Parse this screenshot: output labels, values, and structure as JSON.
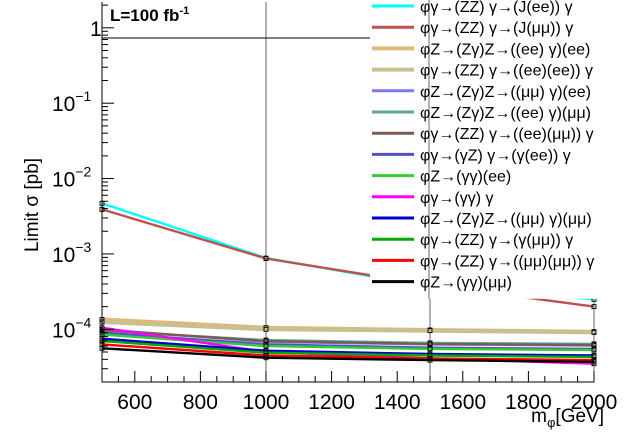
{
  "chart_data": {
    "type": "line",
    "annotation": {
      "text": "L=100 fb",
      "superscript": "-1"
    },
    "xlabel": {
      "main": "m",
      "sub": "φ",
      "unit": "[GeV]"
    },
    "ylabel": "Limit σ [pb]",
    "x_scale": "linear",
    "y_scale": "log",
    "xlim": [
      500,
      2000
    ],
    "ylim": [
      2e-05,
      2.2
    ],
    "x_ticks": [
      600,
      800,
      1000,
      1200,
      1400,
      1600,
      1800,
      2000
    ],
    "y_ticks": [
      {
        "value": 1,
        "base": "1",
        "exp": ""
      },
      {
        "value": 0.1,
        "base": "10",
        "exp": "−1"
      },
      {
        "value": 0.01,
        "base": "10",
        "exp": "−2"
      },
      {
        "value": 0.001,
        "base": "10",
        "exp": "−3"
      },
      {
        "value": 0.0001,
        "base": "10",
        "exp": "−4"
      }
    ],
    "x": [
      500,
      1000,
      1500,
      2000
    ],
    "series": [
      {
        "name": "φγ→(ZZ) γ→(J(ee)) γ",
        "color": "#00ffff",
        "values": [
          0.0047,
          0.00088,
          0.00037,
          0.00025
        ]
      },
      {
        "name": "φγ→(ZZ) γ→(J(μμ)) γ",
        "color": "#c0504d",
        "values": [
          0.0039,
          0.00087,
          0.00039,
          0.0002
        ]
      },
      {
        "name": "φZ→(Zγ)Z→((ee) γ)(ee)",
        "color": "#e0b878",
        "values": [
          0.000135,
          0.000105,
          9.8e-05,
          9.3e-05
        ]
      },
      {
        "name": "φγ→(ZZ) γ→((ee)(ee)) γ",
        "color": "#c8c090",
        "values": [
          0.000125,
          0.0001,
          9.6e-05,
          9.1e-05
        ]
      },
      {
        "name": "φZ→(Zγ)Z→((μμ) γ)(ee)",
        "color": "#7c7cf0",
        "values": [
          0.0001,
          6.8e-05,
          6.3e-05,
          6.1e-05
        ]
      },
      {
        "name": "φZ→(Zγ)Z→((ee) γ)(μμ)",
        "color": "#5fa89a",
        "values": [
          9.5e-05,
          7.2e-05,
          6.6e-05,
          6.4e-05
        ]
      },
      {
        "name": "φγ→(ZZ) γ→((ee)(μμ)) γ",
        "color": "#7a5c50",
        "values": [
          9.8e-05,
          7e-05,
          6.4e-05,
          6.2e-05
        ]
      },
      {
        "name": "φγ→(γZ) γ→(γ(ee)) γ",
        "color": "#5050c8",
        "values": [
          9e-05,
          6.3e-05,
          5.7e-05,
          5.5e-05
        ]
      },
      {
        "name": "φZ→(γγ)(ee)",
        "color": "#33cc33",
        "values": [
          8.5e-05,
          6e-05,
          5.5e-05,
          5.3e-05
        ]
      },
      {
        "name": "φγ→(γγ) γ",
        "color": "#ff00ff",
        "values": [
          0.000105,
          5e-05,
          4.1e-05,
          3.5e-05
        ]
      },
      {
        "name": "φZ→(Zγ)Z→((μμ) γ)(μμ)",
        "color": "#0000cc",
        "values": [
          7.5e-05,
          5.2e-05,
          4.7e-05,
          4.5e-05
        ]
      },
      {
        "name": "φγ→(ZZ) γ→(γ(μμ)) γ",
        "color": "#00aa00",
        "values": [
          7e-05,
          4.9e-05,
          4.5e-05,
          4.3e-05
        ]
      },
      {
        "name": "φγ→(ZZ) γ→((μμ)(μμ)) γ",
        "color": "#ff0000",
        "values": [
          6.3e-05,
          4.5e-05,
          4.1e-05,
          3.9e-05
        ]
      },
      {
        "name": "φZ→(γγ)(μμ)",
        "color": "#000000",
        "values": [
          5.6e-05,
          4.2e-05,
          3.9e-05,
          3.7e-05
        ]
      }
    ]
  }
}
